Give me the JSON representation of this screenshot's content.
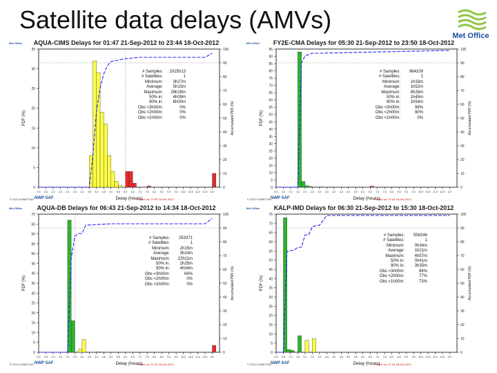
{
  "slide": {
    "title": "Satellite data delays (AMVs)"
  },
  "logo": {
    "name": "met-office-logo",
    "text": "Met Office"
  },
  "common": {
    "xlabel": "Delay (hours)",
    "ylabel": "PDF (%)",
    "y2label": "Accumulated PDF (%)",
    "small_logo": "Met Office",
    "copyright": "© 2012 EUMETSAT",
    "nwp_saf": "NWP SAF",
    "x_tick_labels": [
      "0.0",
      "0.5",
      "1.0",
      "1.5",
      "2.0",
      "2.5",
      "3.0",
      "3.5",
      "4.0",
      "4.5",
      "5.0",
      "5.5",
      "6.0",
      "6.5",
      "7.0",
      "7.5",
      "8.0",
      "8.5",
      "9.0",
      "9.5",
      "10.0",
      "10.5",
      "11.0",
      "11.5",
      "12+"
    ],
    "colors": {
      "green": "#2db52d",
      "yellow": "#ffff44",
      "red": "#e8282a",
      "cumulative": "#2222ff"
    }
  },
  "chart_data": [
    {
      "type": "bar",
      "title": "AQUA-CIMS Delays for 01:47 21-Sep-2012 to 23:44 18-Oct-2012",
      "xlabel": "Delay (hours)",
      "ylabel": "PDF (%)",
      "y2label": "Accumulated PDF (%)",
      "ylim": [
        0,
        35
      ],
      "y_ticks": [
        0,
        5,
        10,
        15,
        20,
        25,
        30,
        35
      ],
      "y2lim": [
        0,
        100
      ],
      "y2_ticks": [
        0,
        10,
        20,
        30,
        40,
        50,
        60,
        70,
        80,
        90,
        100
      ],
      "x_bins": [
        0,
        0.5,
        1,
        1.5,
        2,
        2.5,
        3,
        3.5,
        4,
        4.5,
        5,
        5.5,
        6,
        6.5,
        7,
        7.5,
        8,
        8.5,
        9,
        9.5,
        10,
        10.5,
        11,
        11.5,
        12
      ],
      "bars": [
        {
          "x": 3.5,
          "value": 8,
          "color": "yellow"
        },
        {
          "x": 3.75,
          "value": 32,
          "color": "yellow"
        },
        {
          "x": 4.0,
          "value": 29,
          "color": "yellow"
        },
        {
          "x": 4.25,
          "value": 19,
          "color": "yellow"
        },
        {
          "x": 4.5,
          "value": 16,
          "color": "yellow"
        },
        {
          "x": 4.75,
          "value": 8,
          "color": "yellow"
        },
        {
          "x": 5.0,
          "value": 4,
          "color": "yellow"
        },
        {
          "x": 5.25,
          "value": 1.5,
          "color": "yellow"
        },
        {
          "x": 5.5,
          "value": 0.5,
          "color": "yellow"
        },
        {
          "x": 6.0,
          "value": 4,
          "color": "red"
        },
        {
          "x": 6.25,
          "value": 4,
          "color": "red"
        },
        {
          "x": 6.5,
          "value": 1,
          "color": "red"
        },
        {
          "x": 7.5,
          "value": 0.3,
          "color": "red"
        },
        {
          "x": 12,
          "value": 3.5,
          "color": "red"
        }
      ],
      "cumulative": [
        [
          0,
          0
        ],
        [
          3.5,
          0
        ],
        [
          3.75,
          23
        ],
        [
          4.0,
          55
        ],
        [
          4.25,
          72
        ],
        [
          4.5,
          82
        ],
        [
          4.75,
          88
        ],
        [
          5.0,
          91
        ],
        [
          5.5,
          92
        ],
        [
          6.0,
          93
        ],
        [
          7.0,
          94
        ],
        [
          11.5,
          94
        ],
        [
          12,
          97
        ]
      ],
      "vline": 6.0,
      "hline": 90,
      "stats": [
        {
          "k": "# Samples:",
          "v": "2025013"
        },
        {
          "k": "# Satellites:",
          "v": "1"
        },
        {
          "k": "Minimum:",
          "v": "3h27m"
        },
        {
          "k": "Average:",
          "v": "5h15m"
        },
        {
          "k": "Maximum:",
          "v": "28h28m"
        },
        {
          "k": "50% in:",
          "v": "4h09m"
        },
        {
          "k": "90% in:",
          "v": "6h00m"
        },
        {
          "k": "Obs <3h00m:",
          "v": "0%"
        },
        {
          "k": "Obs <2h00m:",
          "v": "0%"
        },
        {
          "k": "Obs <1h00m:",
          "v": "0%"
        }
      ],
      "plotted": "Plotted on: 07:03 18-Oct-2012"
    },
    {
      "type": "bar",
      "title": "FY2E-CMA Delays for 05:30 21-Sep-2012 to 23:50 18-Oct-2012",
      "xlabel": "Delay (hours)",
      "ylabel": "PDF (%)",
      "y2label": "Accumulated PDF (%)",
      "ylim": [
        0,
        95
      ],
      "y_ticks": [
        0,
        5,
        10,
        15,
        20,
        25,
        30,
        35,
        40,
        45,
        50,
        55,
        60,
        65,
        70,
        75,
        80,
        85,
        90,
        95
      ],
      "y2lim": [
        0,
        100
      ],
      "y2_ticks": [
        0,
        10,
        20,
        30,
        40,
        50,
        60,
        70,
        80,
        90,
        100
      ],
      "x_bins": [
        0,
        0.5,
        1,
        1.5,
        2,
        2.5,
        3,
        3.5,
        4,
        4.5,
        5,
        5.5,
        6,
        6.5,
        7,
        7.5,
        8,
        8.5,
        9,
        9.5,
        10,
        10.5,
        11,
        11.5,
        12
      ],
      "bars": [
        {
          "x": 1.5,
          "value": 93,
          "color": "green"
        },
        {
          "x": 1.75,
          "value": 4,
          "color": "green"
        },
        {
          "x": 2.0,
          "value": 1,
          "color": "green"
        },
        {
          "x": 2.25,
          "value": 0.5,
          "color": "green"
        },
        {
          "x": 3.0,
          "value": 0.3,
          "color": "yellow"
        },
        {
          "x": 6.5,
          "value": 0.7,
          "color": "red"
        }
      ],
      "cumulative": [
        [
          0,
          0
        ],
        [
          1.5,
          0
        ],
        [
          1.75,
          90
        ],
        [
          2.0,
          95
        ],
        [
          2.5,
          97
        ],
        [
          3.0,
          97
        ],
        [
          12,
          99
        ]
      ],
      "vline": 1.5,
      "hline": 90,
      "stats": [
        {
          "k": "# Samples:",
          "v": "964109"
        },
        {
          "k": "# Satellites:",
          "v": "1"
        },
        {
          "k": "Minimum:",
          "v": "1h33m"
        },
        {
          "k": "Average:",
          "v": "1h52m"
        },
        {
          "k": "Maximum:",
          "v": "8h26m"
        },
        {
          "k": "50% in:",
          "v": "1h45m"
        },
        {
          "k": "90% in:",
          "v": "1h54m"
        },
        {
          "k": "Obs <3h00m:",
          "v": "98%"
        },
        {
          "k": "Obs <2h00m:",
          "v": "90%"
        },
        {
          "k": "Obs <1h00m:",
          "v": "0%"
        }
      ],
      "plotted": "Plotted on: 07:03 18-Oct-2012"
    },
    {
      "type": "bar",
      "title": "AQUA-DB Delays for 06:43 21-Sep-2012 to 14:34 18-Oct-2012",
      "xlabel": "Delay (hours)",
      "ylabel": "PDF (%)",
      "y2label": "Accumulated PDF (%)",
      "ylim": [
        0,
        70
      ],
      "y_ticks": [
        0,
        5,
        10,
        15,
        20,
        25,
        30,
        35,
        40,
        45,
        50,
        55,
        60,
        65,
        70
      ],
      "y2lim": [
        0,
        100
      ],
      "y2_ticks": [
        0,
        10,
        20,
        30,
        40,
        50,
        60,
        70,
        80,
        90,
        100
      ],
      "x_bins": [
        0,
        0.5,
        1,
        1.5,
        2,
        2.5,
        3,
        3.5,
        4,
        4.5,
        5,
        5.5,
        6,
        6.5,
        7,
        7.5,
        8,
        8.5,
        9,
        9.5,
        10,
        10.5,
        11,
        11.5,
        12
      ],
      "bars": [
        {
          "x": 2.0,
          "value": 67,
          "color": "green"
        },
        {
          "x": 2.25,
          "value": 16,
          "color": "green"
        },
        {
          "x": 2.75,
          "value": 1.5,
          "color": "yellow"
        },
        {
          "x": 3.0,
          "value": 6.5,
          "color": "yellow"
        },
        {
          "x": 4.0,
          "value": 0.3,
          "color": "yellow"
        },
        {
          "x": 12,
          "value": 3.5,
          "color": "red"
        }
      ],
      "cumulative": [
        [
          0,
          0
        ],
        [
          2.0,
          0
        ],
        [
          2.25,
          68
        ],
        [
          2.5,
          84
        ],
        [
          2.75,
          86
        ],
        [
          3.0,
          86
        ],
        [
          3.25,
          92
        ],
        [
          5.0,
          93
        ],
        [
          11.5,
          93
        ],
        [
          12,
          97
        ]
      ],
      "vline": 2.5,
      "hline": 90,
      "stats": [
        {
          "k": "# Samples:",
          "v": "253371"
        },
        {
          "k": "# Satellites:",
          "v": "1"
        },
        {
          "k": "Minimum:",
          "v": "2h15m"
        },
        {
          "k": "Average:",
          "v": "3h14m"
        },
        {
          "k": "Maximum:",
          "v": "22h11m"
        },
        {
          "k": "50% in:",
          "v": "2h25m"
        },
        {
          "k": "90% in:",
          "v": "4h04m"
        },
        {
          "k": "Obs <3h00m:",
          "v": "84%"
        },
        {
          "k": "Obs <2h00m:",
          "v": "0%"
        },
        {
          "k": "Obs <1h00m:",
          "v": "0%"
        }
      ],
      "plotted": "Plotted on: 07:23 18-Oct-2012"
    },
    {
      "type": "bar",
      "title": "KALP-IMD Delays for 06:30 21-Sep-2012 to 15:30 18-Oct-2012",
      "xlabel": "Delay (hours)",
      "ylabel": "PDF (%)",
      "y2label": "Accumulated PDF (%)",
      "ylim": [
        0,
        75
      ],
      "y_ticks": [
        0,
        5,
        10,
        15,
        20,
        25,
        30,
        35,
        40,
        45,
        50,
        55,
        60,
        65,
        70,
        75
      ],
      "y2lim": [
        0,
        100
      ],
      "y2_ticks": [
        0,
        10,
        20,
        30,
        40,
        50,
        60,
        70,
        80,
        90,
        100
      ],
      "x_bins": [
        0,
        0.5,
        1,
        1.5,
        2,
        2.5,
        3,
        3.5,
        4,
        4.5,
        5,
        5.5,
        6,
        6.5,
        7,
        7.5,
        8,
        8.5,
        9,
        9.5,
        10,
        10.5,
        11,
        11.5,
        12
      ],
      "bars": [
        {
          "x": 0.5,
          "value": 73,
          "color": "green"
        },
        {
          "x": 0.75,
          "value": 1.5,
          "color": "green"
        },
        {
          "x": 1.0,
          "value": 1,
          "color": "green"
        },
        {
          "x": 1.5,
          "value": 9,
          "color": "green"
        },
        {
          "x": 2.0,
          "value": 6.5,
          "color": "yellow"
        },
        {
          "x": 2.5,
          "value": 7.5,
          "color": "yellow"
        }
      ],
      "cumulative": [
        [
          0,
          0
        ],
        [
          0.5,
          0
        ],
        [
          0.75,
          73
        ],
        [
          1.25,
          74
        ],
        [
          1.5,
          76
        ],
        [
          1.75,
          76
        ],
        [
          2.0,
          85
        ],
        [
          2.25,
          85
        ],
        [
          2.5,
          91
        ],
        [
          3.0,
          92
        ],
        [
          3.5,
          99
        ],
        [
          12,
          99
        ]
      ],
      "vline": 0.75,
      "hline": 90,
      "stats": [
        {
          "k": "# Samples:",
          "v": "558246"
        },
        {
          "k": "# Satellites:",
          "v": "1"
        },
        {
          "k": "Minimum:",
          "v": "0h34m"
        },
        {
          "k": "Average:",
          "v": "1h21m"
        },
        {
          "k": "Maximum:",
          "v": "4h57m"
        },
        {
          "k": "50% in:",
          "v": "0h41m"
        },
        {
          "k": "90% in:",
          "v": "3h35m"
        },
        {
          "k": "Obs <3h00m:",
          "v": "86%"
        },
        {
          "k": "Obs <2h00m:",
          "v": "77%"
        },
        {
          "k": "Obs <1h00m:",
          "v": "73%"
        }
      ],
      "plotted": "Plotted on: 07:23 18-Oct-2012"
    }
  ]
}
